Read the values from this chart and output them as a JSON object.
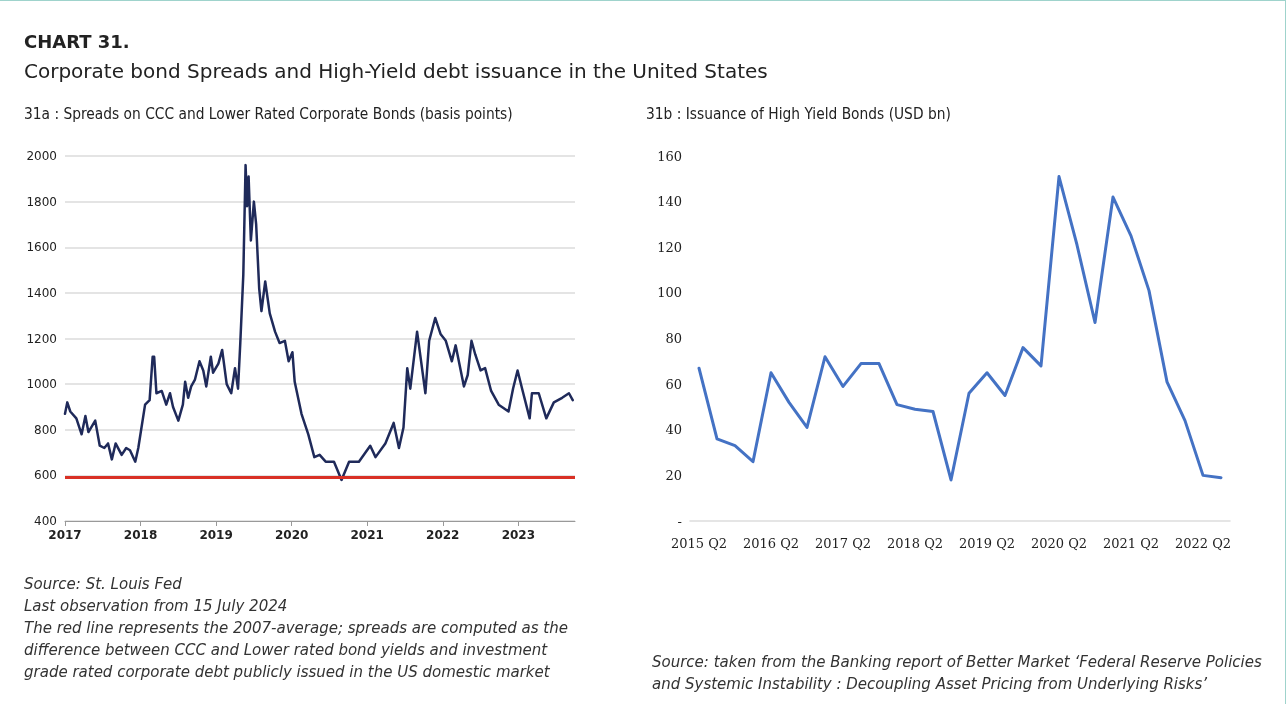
{
  "chart_data": [
    {
      "type": "line",
      "title": "31a : Spreads on CCC and Lower Rated Corporate Bonds (basis points)",
      "annotations": [
        "CHART 31.",
        "Corporate bond Spreads and High-Yield debt issuance in the United States",
        "Source: St. Louis Fed",
        "Last observation from 15 July 2024",
        "The red line represents the 2007-average; spreads are computed as the difference between CCC and Lower rated bond yields and  investment grade rated corporate debt publicly issued in the US domestic market"
      ],
      "x": [
        2017.0,
        2017.03,
        2017.07,
        2017.15,
        2017.22,
        2017.27,
        2017.31,
        2017.4,
        2017.46,
        2017.52,
        2017.57,
        2017.62,
        2017.67,
        2017.75,
        2017.81,
        2017.86,
        2017.93,
        2017.97,
        2018.06,
        2018.12,
        2018.16,
        2018.18,
        2018.21,
        2018.28,
        2018.34,
        2018.39,
        2018.43,
        2018.5,
        2018.56,
        2018.59,
        2018.63,
        2018.67,
        2018.72,
        2018.78,
        2018.83,
        2018.87,
        2018.93,
        2018.96,
        2019.03,
        2019.08,
        2019.14,
        2019.2,
        2019.25,
        2019.29,
        2019.32,
        2019.36,
        2019.39,
        2019.41,
        2019.43,
        2019.46,
        2019.5,
        2019.53,
        2019.57,
        2019.6,
        2019.65,
        2019.71,
        2019.78,
        2019.84,
        2019.91,
        2019.96,
        2020.01,
        2020.04,
        2020.13,
        2020.22,
        2020.3,
        2020.37,
        2020.45,
        2020.56,
        2020.66,
        2020.76,
        2020.89,
        2021.04,
        2021.11,
        2021.24,
        2021.35,
        2021.42,
        2021.48,
        2021.53,
        2021.57,
        2021.66,
        2021.77,
        2021.82,
        2021.9,
        2021.97,
        2022.04,
        2022.12,
        2022.17,
        2022.28,
        2022.33,
        2022.38,
        2022.43,
        2022.5,
        2022.56,
        2022.64,
        2022.74,
        2022.87,
        2022.93,
        2022.99,
        2023.05,
        2023.15,
        2023.18,
        2023.27,
        2023.37,
        2023.47,
        2023.58,
        2023.67,
        2023.72
      ],
      "series": [
        {
          "color": "#1f2a5a",
          "values": [
            870,
            920,
            880,
            850,
            780,
            860,
            790,
            840,
            730,
            720,
            740,
            670,
            740,
            690,
            720,
            710,
            660,
            720,
            910,
            930,
            1120,
            1120,
            960,
            970,
            910,
            960,
            900,
            840,
            910,
            1010,
            940,
            990,
            1020,
            1100,
            1060,
            990,
            1120,
            1050,
            1090,
            1150,
            1000,
            960,
            1070,
            980,
            1180,
            1480,
            1960,
            1780,
            1910,
            1630,
            1800,
            1700,
            1420,
            1320,
            1450,
            1310,
            1230,
            1180,
            1190,
            1100,
            1140,
            1010,
            870,
            780,
            680,
            690,
            660,
            660,
            580,
            660,
            660,
            730,
            680,
            740,
            830,
            720,
            810,
            1070,
            980,
            1230,
            960,
            1190,
            1290,
            1220,
            1190,
            1100,
            1170,
            990,
            1040,
            1190,
            1130,
            1060,
            1070,
            970,
            910,
            880,
            980,
            1060,
            980,
            850,
            960,
            960,
            850,
            920,
            940,
            960,
            930
          ]
        }
      ],
      "xlim": [
        2017,
        2023.75
      ],
      "xticks": [
        2017,
        2018,
        2019,
        2020,
        2021,
        2022,
        2023
      ],
      "ylim": [
        400,
        2000
      ],
      "yticks": [
        400,
        600,
        800,
        1000,
        1200,
        1400,
        1600,
        1800,
        2000
      ],
      "grid": "y",
      "ref_lines": [
        {
          "axis": "y",
          "value": 590,
          "color": "#d93025"
        }
      ]
    },
    {
      "type": "line",
      "title": "31b : Issuance of High Yield Bonds (USD bn)",
      "annotations": [
        "Source: taken from the Banking report of Better Market ‘Federal Reserve Policies and Systemic Instability : Decoupling Asset Pricing from Underlying Risks’"
      ],
      "categories": [
        "2015 Q2",
        null,
        null,
        null,
        "2016 Q2",
        null,
        null,
        null,
        "2017 Q2",
        null,
        null,
        null,
        "2018 Q2",
        null,
        null,
        null,
        "2019 Q2",
        null,
        null,
        null,
        "2020 Q2",
        null,
        null,
        null,
        "2021 Q2",
        null,
        null,
        null,
        "2022 Q2",
        null
      ],
      "series": [
        {
          "color": "#4472c4",
          "values": [
            67,
            36,
            33,
            26,
            65,
            52,
            41,
            72,
            59,
            69,
            69,
            51,
            49,
            48,
            18,
            56,
            65,
            55,
            76,
            68,
            151,
            121,
            87,
            142,
            125,
            101,
            61,
            44,
            20,
            19
          ]
        }
      ],
      "ylim": [
        0,
        160
      ],
      "yticks": [
        {
          "value": 0,
          "label": "-"
        },
        20,
        40,
        60,
        80,
        100,
        120,
        140,
        160
      ]
    }
  ]
}
